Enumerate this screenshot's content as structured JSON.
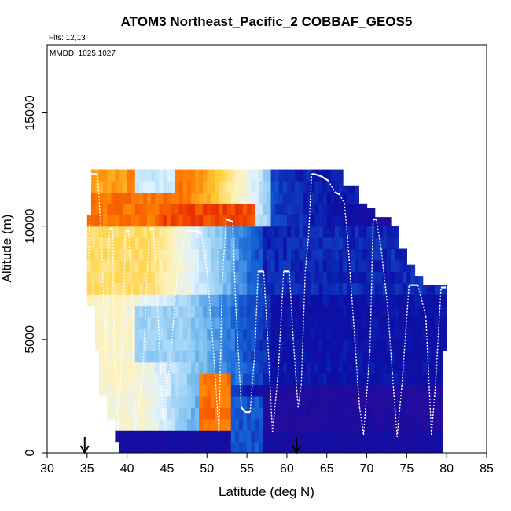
{
  "chart_data": {
    "type": "heatmap",
    "title": "ATOM3 Northeast_Pacific_2 COBBAF_GEOS5",
    "annotations": {
      "flights": "Flts: 12,13",
      "dates": "MMDD: 1025,1027"
    },
    "xlabel": "Latitude (deg N)",
    "ylabel": "Altitude (m)",
    "xlim": [
      30,
      85
    ],
    "ylim": [
      0,
      18000
    ],
    "x_ticks": [
      30,
      35,
      40,
      45,
      50,
      55,
      60,
      65,
      70,
      75,
      80,
      85
    ],
    "x_tick_labels": [
      "30",
      "35",
      "40",
      "45",
      "50",
      "55",
      "60",
      "65",
      "70",
      "75",
      "80",
      "85"
    ],
    "y_ticks": [
      0,
      5000,
      10000,
      15000
    ],
    "y_tick_labels": [
      "0",
      "5000",
      "10000",
      "15000"
    ],
    "grid": false,
    "colormap": [
      "#2a0a9a",
      "#0a10a6",
      "#1666d8",
      "#79bff0",
      "#dff2ff",
      "#fff2b8",
      "#ffcc33",
      "#ff7a00",
      "#dd0a00"
    ],
    "markers": [
      {
        "label": "arrow",
        "x": 34.7
      },
      {
        "label": "arrow",
        "x": 61.2
      }
    ],
    "flight_track": {
      "x": [
        35.2,
        35.5,
        36.3,
        36.8,
        37.3,
        37.8,
        38.2,
        38.4,
        38.9,
        39.5,
        39.8,
        40.2,
        40.8,
        41.0,
        42.0,
        42.4,
        42.8,
        43.3,
        43.9,
        44.5,
        45.4,
        46.3,
        47.4,
        48.6,
        49.3,
        50.0,
        50.6,
        51.1,
        51.5,
        51.9,
        52.4,
        53.2,
        53.6,
        54.3,
        54.8,
        55.4,
        56.0,
        56.4,
        57.1,
        57.6,
        58.2,
        58.9,
        59.6,
        60.3,
        60.8,
        61.4,
        61.8,
        62.3,
        62.7,
        63.1,
        63.5,
        64.3,
        65.2,
        66.0,
        66.6,
        67.2,
        67.6,
        68.4,
        69.1,
        69.6,
        70.4,
        70.8,
        71.2,
        71.8,
        72.6,
        73.2,
        73.8,
        74.4,
        75.3,
        75.6,
        76.4,
        77.4,
        78.1,
        78.6,
        79.3,
        79.9
      ],
      "y": [
        8500,
        12300,
        12300,
        9500,
        4000,
        9900,
        9900,
        4500,
        1000,
        5500,
        9800,
        9800,
        5500,
        1000,
        3500,
        7000,
        9900,
        9900,
        6000,
        1500,
        4000,
        8000,
        9800,
        9800,
        9700,
        8000,
        5500,
        3000,
        900,
        7500,
        10300,
        10200,
        6500,
        2000,
        1800,
        1800,
        4500,
        8000,
        8000,
        5000,
        900,
        3500,
        8000,
        8000,
        5000,
        2000,
        3000,
        8000,
        9500,
        12300,
        12300,
        12200,
        12000,
        11500,
        11400,
        11000,
        9500,
        5500,
        2000,
        800,
        4500,
        10300,
        10300,
        9000,
        6500,
        3500,
        700,
        3000,
        7400,
        7400,
        7400,
        6000,
        800,
        3000,
        7300,
        7300
      ]
    }
  }
}
